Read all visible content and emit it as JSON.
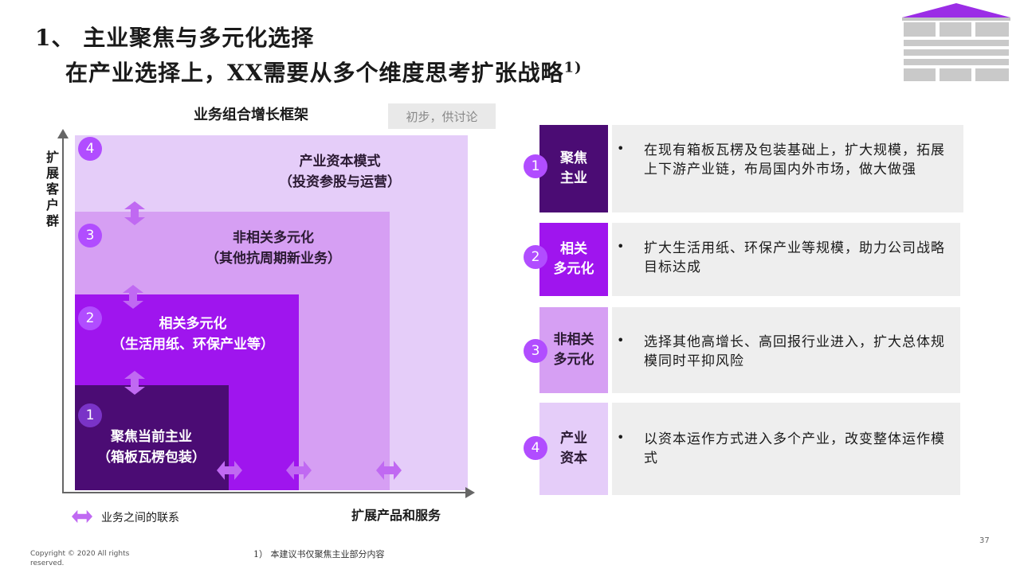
{
  "title": {
    "line1": "1、 主业聚焦与多元化选择",
    "line2": "在产业选择上，XX需要从多个维度思考扩张战略",
    "line2_sup": "1)"
  },
  "framework": {
    "title": "业务组合增长框架",
    "draft_tag": "初步，供讨论",
    "y_axis_label": "扩展客户群",
    "x_axis_label": "扩展产品和服务",
    "legend_label": "业务之间的联系",
    "squares": [
      {
        "num": "1",
        "line1": "聚焦当前主业",
        "line2": "（箱板瓦楞包装）",
        "color": "#4b0c74"
      },
      {
        "num": "2",
        "line1": "相关多元化",
        "line2": "（生活用纸、环保产业等）",
        "color": "#9f15ee"
      },
      {
        "num": "3",
        "line1": "非相关多元化",
        "line2": "（其他抗周期新业务）",
        "color": "#d69ff3"
      },
      {
        "num": "4",
        "line1": "产业资本模式",
        "line2": "（投资参股与运营）",
        "color": "#e5cdf9"
      }
    ],
    "arrow_color": "#c069f2"
  },
  "rows": [
    {
      "num": "1",
      "head": [
        "聚焦",
        "主业"
      ],
      "text": "在现有箱板瓦楞及包装基础上，扩大规模，拓展上下游产业链，布局国内外市场，做大做强",
      "head_bg": "#4b0c74",
      "head_color": "#ffffff"
    },
    {
      "num": "2",
      "head": [
        "相关",
        "多元化"
      ],
      "text": "扩大生活用纸、环保产业等规模，助力公司战略目标达成",
      "head_bg": "#9f15ee",
      "head_color": "#ffffff"
    },
    {
      "num": "3",
      "head": [
        "非相关",
        "多元化"
      ],
      "text": "选择其他高增长、高回报行业进入，扩大总体规模同时平抑风险",
      "head_bg": "#d69ff3",
      "head_color": "#2b1a33"
    },
    {
      "num": "4",
      "head": [
        "产业",
        "资本"
      ],
      "text": "以资本运作方式进入多个产业，改变整体运作模式",
      "head_bg": "#e5cdf9",
      "head_color": "#2b1a33"
    }
  ],
  "bullet": "•",
  "footer": {
    "copyright": "Copyright © 2020 All rights reserved.",
    "footnote": "1） 本建议书仅聚焦主业部分内容",
    "page_number": "37"
  }
}
